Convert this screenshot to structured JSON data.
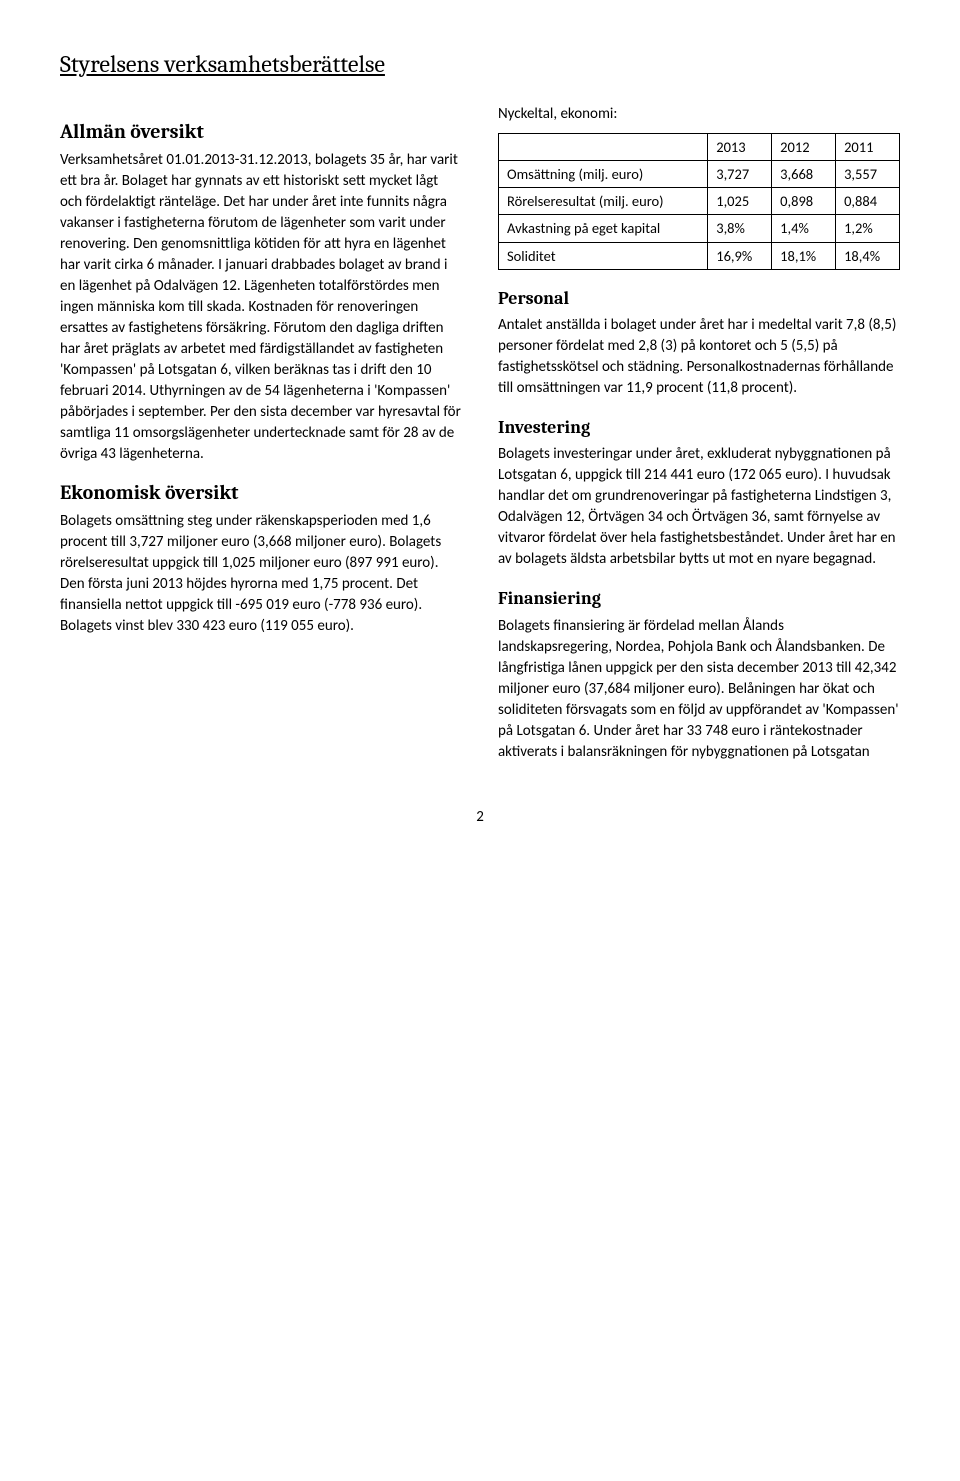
{
  "title": "Styrelsens verksamhetsberättelse",
  "left": {
    "h_allman": "Allmän översikt",
    "p_allman": "Verksamhetsåret 01.01.2013-31.12.2013, bolagets 35 år, har varit ett bra år. Bolaget har gynnats av ett historiskt sett mycket lågt och fördelaktigt ränteläge. Det har under året inte funnits några vakanser i fastigheterna förutom de lägenheter som varit under renovering. Den genomsnittliga kötiden för att hyra en lägenhet har varit cirka 6 månader. I januari drabbades bolaget av brand i en lägenhet på Odalvägen 12. Lägenheten totalförstördes men ingen människa kom till skada. Kostnaden för renoveringen ersattes av fastighetens försäkring. Förutom den dagliga driften har året präglats av arbetet med färdigställandet av fastigheten 'Kompassen' på Lotsgatan 6, vilken beräknas tas i drift den 10 februari 2014. Uthyrningen av de 54 lägenheterna i 'Kompassen' påbörjades i september. Per den sista december var hyresavtal för samtliga 11 omsorgslägenheter undertecknade samt för 28 av de övriga 43 lägenheterna.",
    "h_ekon": "Ekonomisk översikt",
    "p_ekon": "Bolagets omsättning steg under räkenskapsperioden med 1,6 procent till 3,727 miljoner euro (3,668 miljoner euro). Bolagets rörelseresultat uppgick till 1,025 miljoner euro (897 991 euro). Den första juni 2013 höjdes hyrorna med 1,75 procent. Det finansiella nettot uppgick till -695 019 euro (-778 936 euro). Bolagets vinst blev 330 423 euro (119 055 euro)."
  },
  "right": {
    "nyckeltal_intro": "Nyckeltal, ekonomi:",
    "table": {
      "columns": [
        "",
        "2013",
        "2012",
        "2011"
      ],
      "rows": [
        [
          "Omsättning (milj. euro)",
          "3,727",
          "3,668",
          "3,557"
        ],
        [
          "Rörelseresultat (milj. euro)",
          "1,025",
          "0,898",
          "0,884"
        ],
        [
          "Avkastning på eget kapital",
          "3,8%",
          "1,4%",
          "1,2%"
        ],
        [
          "Soliditet",
          "16,9%",
          "18,1%",
          "18,4%"
        ]
      ]
    },
    "h_personal": "Personal",
    "p_personal": "Antalet anställda i bolaget under året har i medeltal varit 7,8 (8,5) personer fördelat med 2,8 (3) på kontoret och 5 (5,5) på fastighetsskötsel och städning. Personalkostnadernas förhållande till omsättningen var 11,9 procent (11,8 procent).",
    "h_invest": "Investering",
    "p_invest": "Bolagets investeringar under året, exkluderat nybyggnationen på Lotsgatan 6, uppgick till 214 441 euro (172 065 euro). I huvudsak handlar det om grundrenoveringar på fastigheterna Lindstigen 3, Odalvägen 12, Örtvägen 34 och Örtvägen 36, samt förnyelse av vitvaror fördelat över hela fastighetsbeståndet. Under året har en av bolagets äldsta arbetsbilar bytts ut mot en nyare begagnad.",
    "h_finans": "Finansiering",
    "p_finans": "Bolagets finansiering är fördelad mellan Ålands landskapsregering, Nordea, Pohjola Bank och Ålandsbanken. De långfristiga lånen uppgick per den sista december 2013 till 42,342 miljoner euro (37,684 miljoner euro). Belåningen har ökat och soliditeten försvagats som en följd av uppförandet av 'Kompassen' på Lotsgatan 6. Under året har 33 748 euro i räntekostnader aktiverats i balansräkningen för nybyggnationen på Lotsgatan"
  },
  "page_number": "2"
}
